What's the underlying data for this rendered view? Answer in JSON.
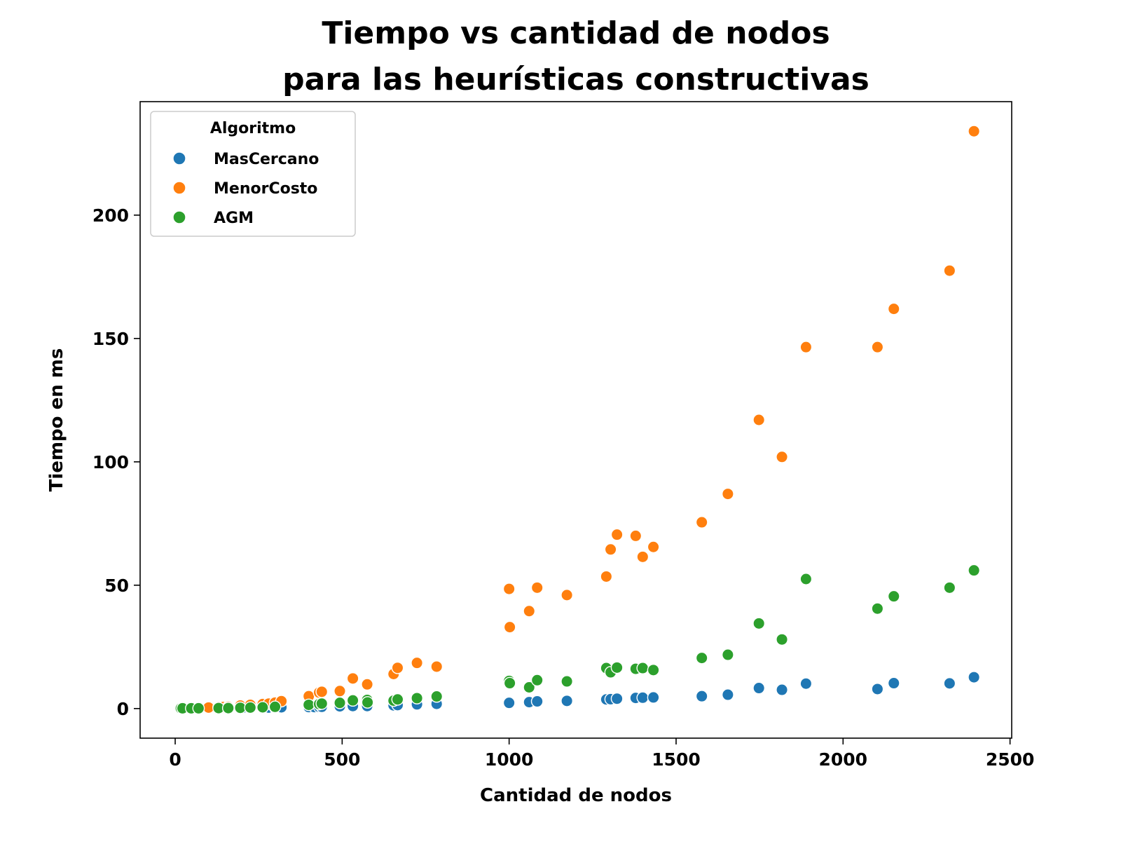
{
  "chart_data": {
    "type": "scatter",
    "title": "Tiempo vs cantidad de nodos\npara las heurísticas constructivas",
    "xlabel": "Cantidad de nodos",
    "ylabel": "Tiempo en ms",
    "xlim": [
      -105,
      2505
    ],
    "ylim": [
      -12,
      246
    ],
    "xticks": [
      0,
      500,
      1000,
      1500,
      2000,
      2500
    ],
    "yticks": [
      0,
      50,
      100,
      150,
      200
    ],
    "grid": false,
    "legend": {
      "title": "Algoritmo",
      "placement": "top-left"
    },
    "series": [
      {
        "name": "MasCercano",
        "color": "#1f77b4",
        "points": [
          [
            17,
            0.1
          ],
          [
            22,
            0.1
          ],
          [
            48,
            0.1
          ],
          [
            52,
            0.1
          ],
          [
            70,
            0.1
          ],
          [
            100,
            0.2
          ],
          [
            127,
            0.2
          ],
          [
            130,
            0.2
          ],
          [
            136,
            0.2
          ],
          [
            144,
            0.2
          ],
          [
            152,
            0.2
          ],
          [
            159,
            0.2
          ],
          [
            195,
            0.3
          ],
          [
            202,
            0.3
          ],
          [
            225,
            0.3
          ],
          [
            262,
            0.4
          ],
          [
            280,
            0.4
          ],
          [
            299,
            0.4
          ],
          [
            318,
            0.5
          ],
          [
            400,
            0.6
          ],
          [
            417,
            0.6
          ],
          [
            431,
            0.7
          ],
          [
            439,
            0.7
          ],
          [
            493,
            0.9
          ],
          [
            532,
            1.0
          ],
          [
            575,
            1.0
          ],
          [
            654,
            1.3
          ],
          [
            666,
            1.4
          ],
          [
            724,
            1.7
          ],
          [
            783,
            1.9
          ],
          [
            1000,
            2.3
          ],
          [
            1060,
            2.6
          ],
          [
            1084,
            2.9
          ],
          [
            1173,
            3.1
          ],
          [
            1291,
            3.7
          ],
          [
            1304,
            3.8
          ],
          [
            1323,
            4.0
          ],
          [
            1379,
            4.3
          ],
          [
            1400,
            4.4
          ],
          [
            1432,
            4.5
          ],
          [
            1577,
            5.0
          ],
          [
            1655,
            5.6
          ],
          [
            1748,
            8.3
          ],
          [
            1817,
            7.6
          ],
          [
            1889,
            10.1
          ],
          [
            2103,
            7.9
          ],
          [
            2152,
            10.3
          ],
          [
            2319,
            10.2
          ],
          [
            2392,
            12.7
          ]
        ]
      },
      {
        "name": "MenorCosto",
        "color": "#ff7f0e",
        "points": [
          [
            17,
            0.1
          ],
          [
            48,
            0.2
          ],
          [
            70,
            0.2
          ],
          [
            100,
            0.4
          ],
          [
            130,
            0.6
          ],
          [
            144,
            0.6
          ],
          [
            159,
            0.7
          ],
          [
            195,
            1.2
          ],
          [
            225,
            1.5
          ],
          [
            262,
            1.8
          ],
          [
            280,
            2.0
          ],
          [
            299,
            2.4
          ],
          [
            318,
            3.0
          ],
          [
            400,
            5.0
          ],
          [
            431,
            6.5
          ],
          [
            439,
            6.8
          ],
          [
            493,
            7.1
          ],
          [
            532,
            12.2
          ],
          [
            575,
            9.8
          ],
          [
            654,
            14.0
          ],
          [
            666,
            16.5
          ],
          [
            724,
            18.5
          ],
          [
            783,
            17.0
          ],
          [
            1000,
            48.5
          ],
          [
            1002,
            33.0
          ],
          [
            1060,
            39.5
          ],
          [
            1084,
            49.0
          ],
          [
            1173,
            46.0
          ],
          [
            1291,
            53.5
          ],
          [
            1304,
            64.5
          ],
          [
            1323,
            70.5
          ],
          [
            1379,
            70.0
          ],
          [
            1400,
            61.5
          ],
          [
            1432,
            65.5
          ],
          [
            1577,
            75.5
          ],
          [
            1655,
            87.0
          ],
          [
            1748,
            117.0
          ],
          [
            1817,
            102.0
          ],
          [
            1889,
            146.5
          ],
          [
            2103,
            146.5
          ],
          [
            2152,
            162.0
          ],
          [
            2319,
            177.5
          ],
          [
            2392,
            234.0
          ]
        ]
      },
      {
        "name": "AGM",
        "color": "#2ca02c",
        "points": [
          [
            17,
            0.1
          ],
          [
            22,
            0.1
          ],
          [
            48,
            0.1
          ],
          [
            70,
            0.1
          ],
          [
            130,
            0.2
          ],
          [
            159,
            0.2
          ],
          [
            195,
            0.3
          ],
          [
            225,
            0.4
          ],
          [
            262,
            0.5
          ],
          [
            299,
            0.7
          ],
          [
            400,
            1.5
          ],
          [
            431,
            1.8
          ],
          [
            439,
            2.0
          ],
          [
            493,
            2.3
          ],
          [
            532,
            3.3
          ],
          [
            575,
            3.5
          ],
          [
            576,
            2.5
          ],
          [
            654,
            3.2
          ],
          [
            666,
            3.7
          ],
          [
            724,
            4.2
          ],
          [
            783,
            4.9
          ],
          [
            1000,
            11.2
          ],
          [
            1002,
            10.3
          ],
          [
            1060,
            8.6
          ],
          [
            1084,
            11.5
          ],
          [
            1173,
            11.0
          ],
          [
            1291,
            16.4
          ],
          [
            1304,
            14.7
          ],
          [
            1323,
            16.6
          ],
          [
            1379,
            16.1
          ],
          [
            1400,
            16.4
          ],
          [
            1432,
            15.6
          ],
          [
            1577,
            20.5
          ],
          [
            1655,
            21.8
          ],
          [
            1748,
            34.5
          ],
          [
            1817,
            28.0
          ],
          [
            1889,
            52.5
          ],
          [
            2103,
            40.5
          ],
          [
            2152,
            45.5
          ],
          [
            2319,
            49.0
          ],
          [
            2392,
            56.0
          ]
        ]
      }
    ]
  }
}
